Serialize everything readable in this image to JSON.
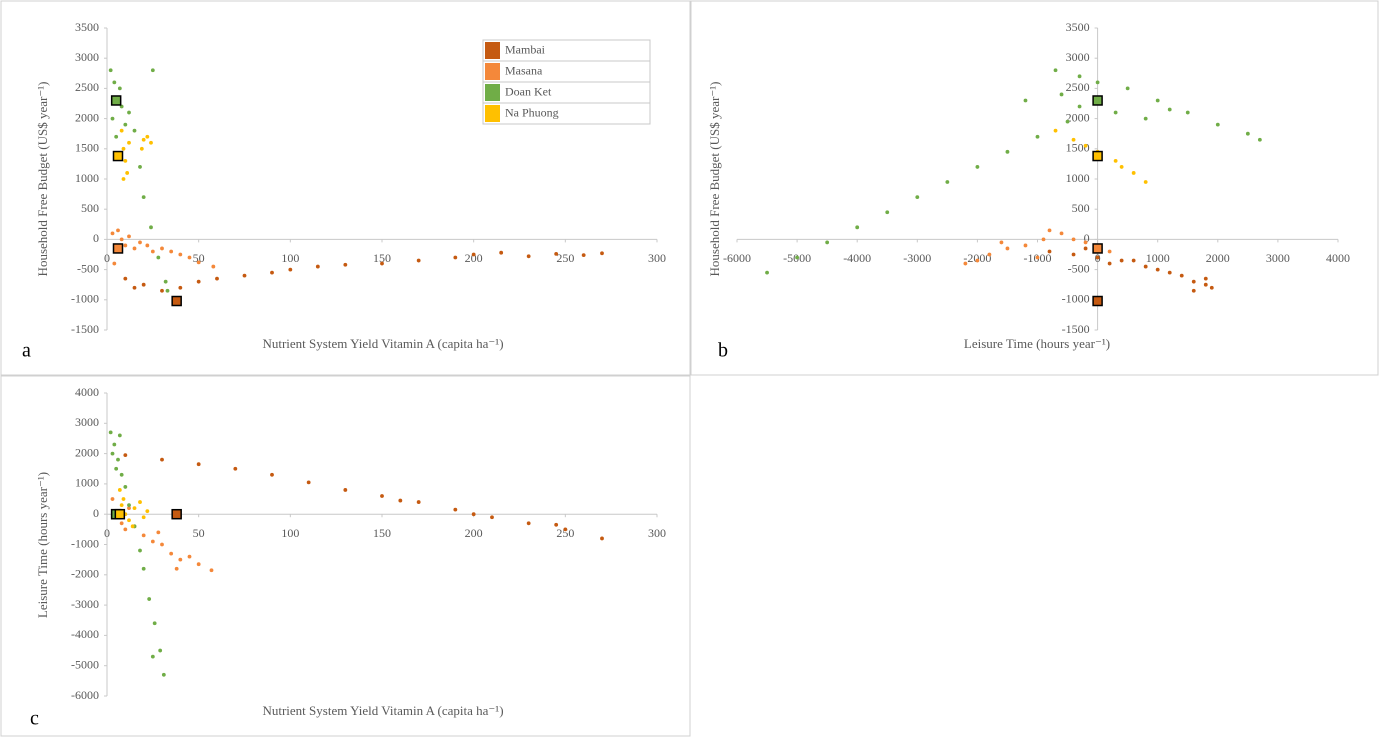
{
  "chart_data": [
    {
      "type": "scatter",
      "panel_label": "a",
      "x_label": "Nutrient System Yield Vitamin A (capita ha⁻¹)",
      "y_label": "Household Free Budget (US$ year⁻¹)",
      "xlim": [
        0,
        300
      ],
      "ylim": [
        -1500,
        3500
      ],
      "xticks": [
        0,
        50,
        100,
        150,
        200,
        250,
        300
      ],
      "yticks": [
        -1500,
        -1000,
        -500,
        0,
        500,
        1000,
        1500,
        2000,
        2500,
        3000,
        3500
      ],
      "legend": "upper right",
      "series": [
        {
          "name": "Mambai",
          "color": "#c55a11",
          "x": [
            10,
            15,
            20,
            30,
            40,
            50,
            60,
            75,
            90,
            100,
            115,
            130,
            150,
            170,
            190,
            200,
            215,
            230,
            245,
            260,
            270
          ],
          "y": [
            -650,
            -800,
            -750,
            -850,
            -800,
            -700,
            -650,
            -600,
            -550,
            -500,
            -450,
            -420,
            -400,
            -350,
            -300,
            -250,
            -220,
            -280,
            -240,
            -260,
            -230
          ],
          "baseline": [
            38,
            -1020
          ]
        },
        {
          "name": "Masana",
          "color": "#f4883a",
          "x": [
            3,
            5,
            8,
            10,
            12,
            15,
            18,
            22,
            25,
            30,
            35,
            40,
            45,
            50,
            58,
            6,
            4
          ],
          "y": [
            100,
            -200,
            0,
            -100,
            50,
            -150,
            -50,
            -100,
            -200,
            -150,
            -200,
            -250,
            -300,
            -380,
            -450,
            150,
            -400
          ],
          "baseline": [
            6,
            -150
          ]
        },
        {
          "name": "Doan Ket",
          "color": "#70ad47",
          "x": [
            2,
            4,
            6,
            3,
            8,
            10,
            5,
            12,
            15,
            18,
            20,
            24,
            28,
            32,
            33,
            25,
            7
          ],
          "y": [
            2800,
            2600,
            2300,
            2000,
            2200,
            1900,
            1700,
            2100,
            1800,
            1200,
            700,
            200,
            -300,
            -700,
            -850,
            2800,
            2500
          ],
          "baseline": [
            5,
            2300
          ]
        },
        {
          "name": "Na Phuong",
          "color": "#ffc000",
          "x": [
            8,
            9,
            10,
            9,
            11,
            12,
            19,
            22,
            24,
            20
          ],
          "y": [
            1800,
            1500,
            1300,
            1000,
            1100,
            1600,
            1500,
            1700,
            1600,
            1650
          ],
          "baseline": [
            6,
            1380
          ]
        }
      ]
    },
    {
      "type": "scatter",
      "panel_label": "b",
      "x_label": "Leisure Time (hours year⁻¹)",
      "y_label": "Household Free Budget (US$ year⁻¹)",
      "xlim": [
        -6000,
        4000
      ],
      "ylim": [
        -1500,
        3500
      ],
      "xticks": [
        -6000,
        -5000,
        -4000,
        -3000,
        -2000,
        -1000,
        0,
        1000,
        2000,
        3000,
        4000
      ],
      "yticks": [
        -1500,
        -1000,
        -500,
        0,
        500,
        1000,
        1500,
        2000,
        2500,
        3000,
        3500
      ],
      "series": [
        {
          "color": "#c55a11",
          "x": [
            -800,
            -400,
            0,
            400,
            800,
            1000,
            1200,
            1400,
            1600,
            1800,
            1900,
            1600,
            1800,
            200,
            -200,
            600
          ],
          "y": [
            -200,
            -250,
            -300,
            -350,
            -450,
            -500,
            -550,
            -600,
            -700,
            -750,
            -800,
            -850,
            -650,
            -400,
            -150,
            -350
          ],
          "baseline": [
            0,
            -1020
          ]
        },
        {
          "color": "#f4883a",
          "x": [
            -2200,
            -1800,
            -1500,
            -1200,
            -900,
            -800,
            -600,
            -400,
            -200,
            0,
            200,
            -1000,
            -1600,
            -2000
          ],
          "y": [
            -400,
            -250,
            -150,
            -100,
            0,
            150,
            100,
            0,
            -50,
            -100,
            -200,
            -300,
            -50,
            -350
          ],
          "baseline": [
            0,
            -150
          ]
        },
        {
          "color": "#70ad47",
          "x": [
            -5500,
            -5000,
            -4500,
            -4000,
            -3500,
            -3000,
            -2500,
            -2000,
            -1500,
            -1000,
            -500,
            -700,
            -300,
            0,
            500,
            1000,
            1500,
            2000,
            2500,
            2700,
            -1200,
            -600,
            300,
            800,
            1200,
            -300
          ],
          "y": [
            -550,
            -300,
            -50,
            200,
            450,
            700,
            950,
            1200,
            1450,
            1700,
            1950,
            2800,
            2700,
            2600,
            2500,
            2300,
            2100,
            1900,
            1750,
            1650,
            2300,
            2400,
            2100,
            2000,
            2150,
            2200
          ],
          "baseline": [
            0,
            2300
          ]
        },
        {
          "color": "#ffc000",
          "x": [
            -700,
            -400,
            0,
            300,
            600,
            800,
            -200,
            400
          ],
          "y": [
            1800,
            1650,
            1450,
            1300,
            1100,
            950,
            1550,
            1200
          ],
          "baseline": [
            0,
            1380
          ]
        }
      ]
    },
    {
      "type": "scatter",
      "panel_label": "c",
      "x_label": "Nutrient System Yield Vitamin A (capita ha⁻¹)",
      "y_label": "Leisure Time (hours year⁻¹)",
      "xlim": [
        0,
        300
      ],
      "ylim": [
        -6000,
        4000
      ],
      "xticks": [
        0,
        50,
        100,
        150,
        200,
        250,
        300
      ],
      "yticks": [
        -6000,
        -5000,
        -4000,
        -3000,
        -2000,
        -1000,
        0,
        1000,
        2000,
        3000,
        4000
      ],
      "series": [
        {
          "color": "#c55a11",
          "x": [
            10,
            30,
            50,
            70,
            90,
            110,
            130,
            150,
            170,
            190,
            210,
            230,
            250,
            270,
            160,
            200,
            245
          ],
          "y": [
            1950,
            1800,
            1650,
            1500,
            1300,
            1050,
            800,
            600,
            400,
            150,
            -100,
            -300,
            -500,
            -800,
            450,
            0,
            -350
          ],
          "baseline": [
            38,
            0
          ]
        },
        {
          "color": "#f4883a",
          "x": [
            3,
            5,
            8,
            10,
            12,
            15,
            20,
            25,
            30,
            35,
            40,
            45,
            50,
            57,
            38,
            28
          ],
          "y": [
            500,
            0,
            -300,
            -500,
            200,
            -400,
            -700,
            -900,
            -1000,
            -1300,
            -1500,
            -1400,
            -1650,
            -1850,
            -1800,
            -600
          ],
          "baseline": [
            5,
            0
          ]
        },
        {
          "color": "#70ad47",
          "x": [
            2,
            4,
            6,
            8,
            10,
            5,
            12,
            15,
            18,
            20,
            23,
            26,
            29,
            31,
            25,
            3,
            7
          ],
          "y": [
            2700,
            2300,
            1800,
            1300,
            900,
            1500,
            300,
            -400,
            -1200,
            -1800,
            -2800,
            -3600,
            -4500,
            -5300,
            -4700,
            2000,
            2600
          ],
          "baseline": [
            5,
            0
          ]
        },
        {
          "color": "#ffc000",
          "x": [
            7,
            8,
            10,
            9,
            12,
            15,
            18,
            20,
            22,
            14
          ],
          "y": [
            800,
            300,
            0,
            500,
            -200,
            200,
            400,
            -100,
            100,
            -400
          ],
          "baseline": [
            7,
            0
          ]
        }
      ]
    }
  ]
}
